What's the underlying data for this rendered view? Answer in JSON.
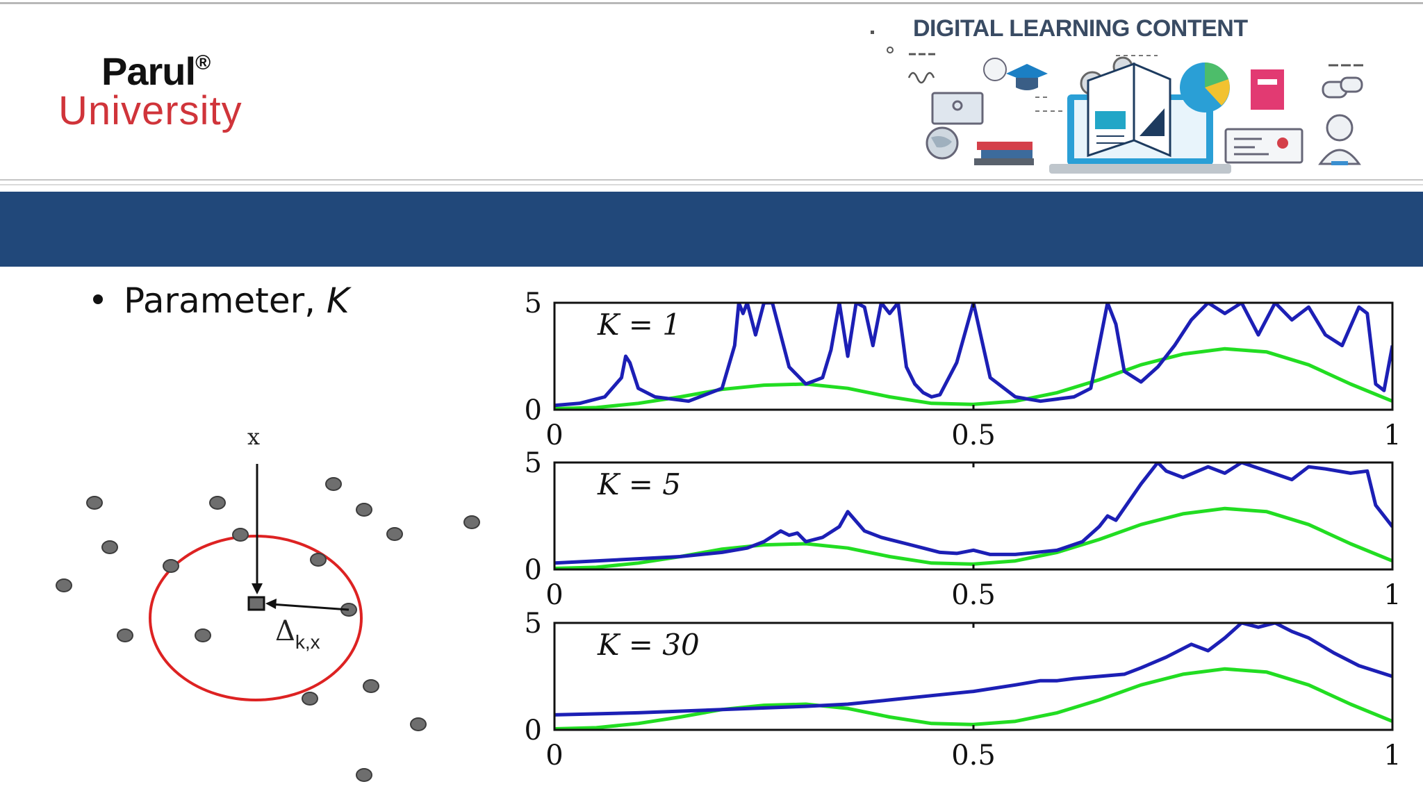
{
  "header": {
    "logo": {
      "name": "Parul",
      "registered": "®",
      "subtitle": "University"
    },
    "banner_title": "DIGITAL LEARNING CONTENT"
  },
  "content": {
    "bullet_text": "Parameter, ",
    "bullet_var": "K"
  },
  "diagram": {
    "query_label": "x",
    "distance_label": "Δ",
    "distance_subscript": "k,x"
  },
  "colors": {
    "accent_bar": "#21487a",
    "brand_red": "#d0343a",
    "estimate": "#1c1fb5",
    "true_density": "#22dd22"
  },
  "chart_data": [
    {
      "type": "line",
      "annotation": "K = 1",
      "xlim": [
        0,
        1
      ],
      "ylim": [
        0,
        5
      ],
      "xticks": [
        "0",
        "0.5",
        "1"
      ],
      "yticks": [
        "0",
        "5"
      ],
      "series": [
        {
          "values_x": [
            0,
            0.03,
            0.06,
            0.08,
            0.085,
            0.09,
            0.1,
            0.12,
            0.16,
            0.2,
            0.215,
            0.22,
            0.225,
            0.23,
            0.24,
            0.25,
            0.26,
            0.28,
            0.3,
            0.32,
            0.33,
            0.34,
            0.35,
            0.36,
            0.37,
            0.38,
            0.39,
            0.4,
            0.41,
            0.42,
            0.43,
            0.44,
            0.45,
            0.46,
            0.48,
            0.5,
            0.52,
            0.55,
            0.58,
            0.6,
            0.62,
            0.64,
            0.65,
            0.66,
            0.67,
            0.68,
            0.7,
            0.72,
            0.74,
            0.76,
            0.78,
            0.8,
            0.82,
            0.84,
            0.86,
            0.88,
            0.9,
            0.92,
            0.94,
            0.96,
            0.97,
            0.98,
            0.99,
            1.0
          ],
          "values_y": [
            0.2,
            0.3,
            0.6,
            1.5,
            2.5,
            2.2,
            1.0,
            0.6,
            0.4,
            1.0,
            3.0,
            5,
            4.5,
            5,
            3.5,
            5,
            5,
            2.0,
            1.2,
            1.5,
            2.8,
            5,
            2.5,
            5,
            4.8,
            3.0,
            5,
            4.5,
            5,
            2.0,
            1.2,
            0.8,
            0.6,
            0.7,
            2.2,
            5,
            1.5,
            0.6,
            0.4,
            0.5,
            0.6,
            1.0,
            3.0,
            5,
            4.0,
            1.8,
            1.3,
            2.0,
            3.0,
            4.2,
            5,
            4.5,
            5,
            3.5,
            5,
            4.2,
            4.8,
            3.5,
            3.0,
            4.8,
            4.5,
            1.2,
            0.9,
            3.0
          ]
        },
        {
          "values_x": [
            0,
            0.05,
            0.1,
            0.15,
            0.2,
            0.25,
            0.3,
            0.35,
            0.4,
            0.45,
            0.5,
            0.55,
            0.6,
            0.65,
            0.7,
            0.75,
            0.8,
            0.85,
            0.9,
            0.95,
            1.0
          ],
          "values_y": [
            0.05,
            0.1,
            0.3,
            0.6,
            0.95,
            1.15,
            1.2,
            1.0,
            0.6,
            0.3,
            0.25,
            0.4,
            0.8,
            1.4,
            2.1,
            2.6,
            2.85,
            2.7,
            2.1,
            1.2,
            0.4
          ]
        }
      ]
    },
    {
      "type": "line",
      "annotation": "K = 5",
      "xlim": [
        0,
        1
      ],
      "ylim": [
        0,
        5
      ],
      "xticks": [
        "0",
        "0.5",
        "1"
      ],
      "yticks": [
        "0",
        "5"
      ],
      "series": [
        {
          "values_x": [
            0,
            0.05,
            0.1,
            0.15,
            0.2,
            0.23,
            0.25,
            0.27,
            0.28,
            0.29,
            0.3,
            0.32,
            0.34,
            0.35,
            0.37,
            0.39,
            0.4,
            0.42,
            0.44,
            0.46,
            0.48,
            0.5,
            0.52,
            0.55,
            0.6,
            0.63,
            0.65,
            0.66,
            0.67,
            0.7,
            0.72,
            0.73,
            0.75,
            0.78,
            0.8,
            0.82,
            0.85,
            0.88,
            0.9,
            0.92,
            0.95,
            0.97,
            0.98,
            1.0
          ],
          "values_y": [
            0.3,
            0.4,
            0.5,
            0.6,
            0.8,
            1.0,
            1.3,
            1.8,
            1.6,
            1.7,
            1.3,
            1.5,
            2.0,
            2.7,
            1.8,
            1.5,
            1.4,
            1.2,
            1.0,
            0.8,
            0.75,
            0.9,
            0.7,
            0.7,
            0.9,
            1.3,
            2.0,
            2.5,
            2.3,
            4.0,
            5,
            4.6,
            4.3,
            4.8,
            4.5,
            5,
            4.6,
            4.2,
            4.8,
            4.7,
            4.5,
            4.6,
            3.0,
            2.0
          ]
        },
        {
          "values_x": [
            0,
            0.05,
            0.1,
            0.15,
            0.2,
            0.25,
            0.3,
            0.35,
            0.4,
            0.45,
            0.5,
            0.55,
            0.6,
            0.65,
            0.7,
            0.75,
            0.8,
            0.85,
            0.9,
            0.95,
            1.0
          ],
          "values_y": [
            0.05,
            0.1,
            0.3,
            0.6,
            0.95,
            1.15,
            1.2,
            1.0,
            0.6,
            0.3,
            0.25,
            0.4,
            0.8,
            1.4,
            2.1,
            2.6,
            2.85,
            2.7,
            2.1,
            1.2,
            0.4
          ]
        }
      ]
    },
    {
      "type": "line",
      "annotation": "K = 30",
      "xlim": [
        0,
        1
      ],
      "ylim": [
        0,
        5
      ],
      "xticks": [
        "0",
        "0.5",
        "1"
      ],
      "yticks": [
        "0",
        "5"
      ],
      "series": [
        {
          "values_x": [
            0,
            0.1,
            0.2,
            0.3,
            0.35,
            0.4,
            0.45,
            0.5,
            0.55,
            0.58,
            0.6,
            0.62,
            0.65,
            0.68,
            0.7,
            0.73,
            0.76,
            0.78,
            0.8,
            0.82,
            0.84,
            0.86,
            0.88,
            0.9,
            0.93,
            0.96,
            1.0
          ],
          "values_y": [
            0.7,
            0.8,
            0.95,
            1.1,
            1.2,
            1.4,
            1.6,
            1.8,
            2.1,
            2.3,
            2.3,
            2.4,
            2.5,
            2.6,
            2.9,
            3.4,
            4.0,
            3.7,
            4.3,
            5,
            4.8,
            5,
            4.6,
            4.3,
            3.6,
            3.0,
            2.5
          ]
        },
        {
          "values_x": [
            0,
            0.05,
            0.1,
            0.15,
            0.2,
            0.25,
            0.3,
            0.35,
            0.4,
            0.45,
            0.5,
            0.55,
            0.6,
            0.65,
            0.7,
            0.75,
            0.8,
            0.85,
            0.9,
            0.95,
            1.0
          ],
          "values_y": [
            0.05,
            0.1,
            0.3,
            0.6,
            0.95,
            1.15,
            1.2,
            1.0,
            0.6,
            0.3,
            0.25,
            0.4,
            0.8,
            1.4,
            2.1,
            2.6,
            2.85,
            2.7,
            2.1,
            1.2,
            0.4
          ]
        }
      ]
    }
  ]
}
